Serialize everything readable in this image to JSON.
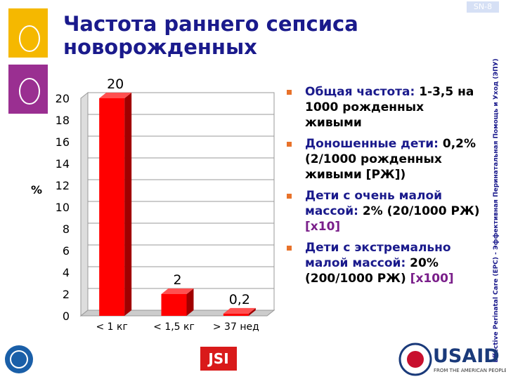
{
  "chart_data": {
    "type": "bar",
    "title": "Частота раннего сепсиса новорожденных",
    "ylabel": "%",
    "categories": [
      "< 1 кг",
      "< 1,5 кг",
      "> 37 нед"
    ],
    "values": [
      20,
      2,
      0.2
    ],
    "value_labels": [
      "20",
      "2",
      "0,2"
    ],
    "color": "#ff0000",
    "ylim": [
      0,
      20
    ],
    "yticks": [
      0,
      2,
      4,
      6,
      8,
      10,
      12,
      14,
      16,
      18,
      20
    ],
    "grid": true
  },
  "slide_number": "SN-8",
  "side_text": "Effective Perinatal Care (EPC) - Эффективная Перинатальная Помощь и Уход (ЭПУ)",
  "bullets": [
    {
      "label": "Общая частота:",
      "text": "1-3,5 на 1000 рожденных живыми"
    },
    {
      "label": "Доношенные дети:",
      "text": "0,2% (2/1000 рожденных живыми [РЖ])"
    },
    {
      "label": "Дети с очень малой массой:",
      "text": "2% (20/1000 РЖ)",
      "note": "[x10]"
    },
    {
      "label": "Дети с экстремально малой массой:",
      "text": "20% (200/1000 РЖ)",
      "note": "[x100]"
    }
  ],
  "logos": {
    "jsi": "JSI",
    "usaid": "USAID",
    "usaid_tagline": "FROM THE AMERICAN PEOPLE"
  }
}
